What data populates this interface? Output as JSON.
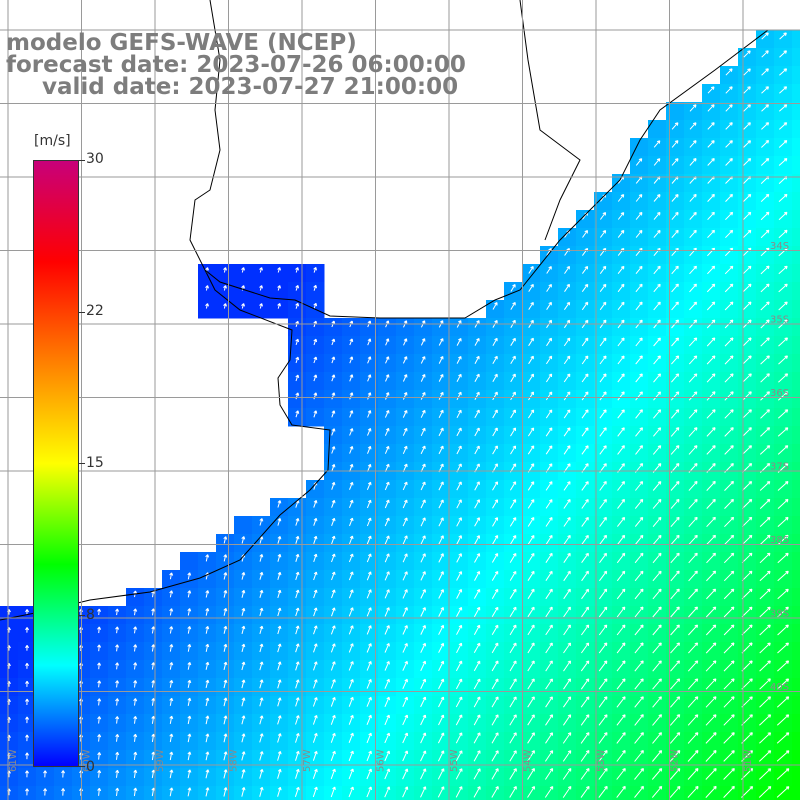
{
  "header": {
    "line1": "modelo GEFS-WAVE (NCEP)",
    "line2": "forecast date: 2023-07-26 06:00:00",
    "line3": "valid date: 2023-07-27 21:00:00"
  },
  "colorbar": {
    "unit": "[m/s]",
    "ticks": [
      "30",
      "22",
      "15",
      "8",
      "0"
    ],
    "min": 0,
    "max": 30,
    "colors": [
      "#0000ff",
      "#00ffff",
      "#00ff00",
      "#ffff00",
      "#ff8000",
      "#ff0000",
      "#c8007a"
    ]
  },
  "map": {
    "lat_labels": [
      "34S",
      "35S",
      "36S",
      "37S",
      "38S",
      "39S",
      "40S"
    ],
    "lon_labels": [
      "61W",
      "60W",
      "59W",
      "58W",
      "57W",
      "56W",
      "55W",
      "54W",
      "53W",
      "52W",
      "51W"
    ],
    "land_color": "#ffffff",
    "grid_color": "#9a9a9a",
    "arrow_color": "#ffffff"
  }
}
